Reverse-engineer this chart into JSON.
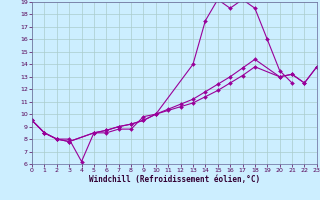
{
  "xlabel": "Windchill (Refroidissement éolien,°C)",
  "background_color": "#cceeff",
  "line_color": "#990099",
  "grid_color": "#aacccc",
  "xlim": [
    0,
    23
  ],
  "ylim": [
    6,
    19
  ],
  "xticks": [
    0,
    1,
    2,
    3,
    4,
    5,
    6,
    7,
    8,
    9,
    10,
    11,
    12,
    13,
    14,
    15,
    16,
    17,
    18,
    19,
    20,
    21,
    22,
    23
  ],
  "yticks": [
    6,
    7,
    8,
    9,
    10,
    11,
    12,
    13,
    14,
    15,
    16,
    17,
    18,
    19
  ],
  "line1_x": [
    0,
    1,
    2,
    3,
    4,
    5,
    6,
    7,
    8,
    9,
    10,
    13,
    14,
    15,
    16,
    17,
    18,
    19,
    20,
    21
  ],
  "line1_y": [
    9.5,
    8.5,
    8.0,
    8.0,
    6.2,
    8.5,
    8.5,
    8.8,
    8.8,
    9.8,
    10.0,
    14.0,
    17.5,
    19.2,
    18.5,
    19.2,
    18.5,
    16.0,
    13.5,
    12.5
  ],
  "line2_x": [
    0,
    1,
    2,
    3,
    5,
    6,
    7,
    8,
    9,
    10,
    11,
    12,
    13,
    14,
    15,
    16,
    17,
    18,
    20,
    21,
    22,
    23
  ],
  "line2_y": [
    9.5,
    8.5,
    8.0,
    7.8,
    8.5,
    8.7,
    9.0,
    9.2,
    9.5,
    10.0,
    10.4,
    10.8,
    11.2,
    11.8,
    12.4,
    13.0,
    13.7,
    14.4,
    13.0,
    13.2,
    12.5,
    13.8
  ],
  "line3_x": [
    0,
    1,
    2,
    3,
    5,
    6,
    7,
    8,
    9,
    10,
    11,
    12,
    13,
    14,
    15,
    16,
    17,
    18,
    20,
    21,
    22,
    23
  ],
  "line3_y": [
    9.5,
    8.5,
    8.0,
    7.8,
    8.5,
    8.7,
    9.0,
    9.2,
    9.5,
    10.0,
    10.3,
    10.6,
    10.9,
    11.4,
    11.9,
    12.5,
    13.1,
    13.8,
    13.0,
    13.2,
    12.5,
    13.8
  ]
}
